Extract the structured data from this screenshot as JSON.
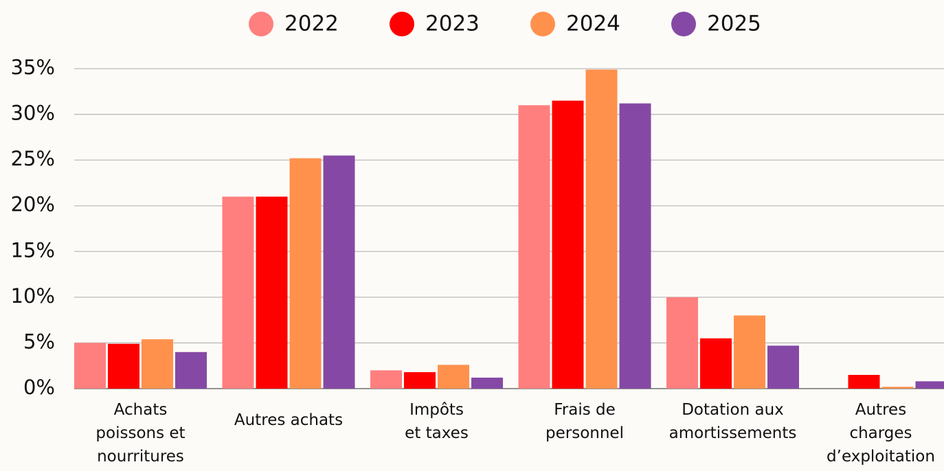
{
  "chart_data": {
    "type": "bar",
    "categories": [
      "Achats\npoissons et\nnourritures",
      "Autres achats",
      "Impôts\net taxes",
      "Frais de\npersonnel",
      "Dotation aux\namortissements",
      "Autres\ncharges\nd’exploitation"
    ],
    "series": [
      {
        "name": "2022",
        "color": "#ff7f7f",
        "values": [
          5.0,
          21.0,
          2.0,
          31.0,
          10.0,
          0
        ]
      },
      {
        "name": "2023",
        "color": "#ff0000",
        "values": [
          4.9,
          21.0,
          1.8,
          31.5,
          5.5,
          1.5
        ]
      },
      {
        "name": "2024",
        "color": "#ff914d",
        "values": [
          5.4,
          25.2,
          2.6,
          34.9,
          8.0,
          0.2
        ]
      },
      {
        "name": "2025",
        "color": "#8549a5",
        "values": [
          4.0,
          25.5,
          1.2,
          31.2,
          4.7,
          0.8
        ]
      }
    ],
    "ylim": [
      0,
      35
    ],
    "yticks": [
      {
        "value": 0,
        "label": "0%"
      },
      {
        "value": 5,
        "label": "5%"
      },
      {
        "value": 10,
        "label": "10%"
      },
      {
        "value": 15,
        "label": "15%"
      },
      {
        "value": 20,
        "label": "20%"
      },
      {
        "value": 25,
        "label": "25%"
      },
      {
        "value": 30,
        "label": "30%"
      },
      {
        "value": 35,
        "label": "35%"
      }
    ],
    "grid": true,
    "legend": "top"
  }
}
